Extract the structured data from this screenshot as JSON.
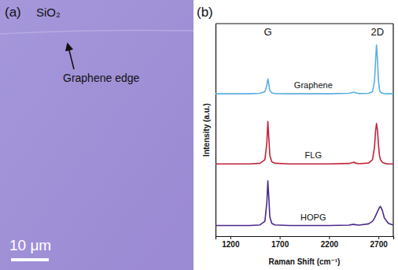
{
  "panel_a": {
    "label": "(a)",
    "substrate": "SiO₂",
    "annotation": "Graphene edge",
    "scale_bar": "10 μm"
  },
  "chart_data": {
    "type": "line",
    "panel_label": "(b)",
    "x_label": "Raman Shift (cm⁻¹)",
    "y_label": "Intensity (a.u.)",
    "annotations": [
      {
        "text": "G",
        "x": 1580
      },
      {
        "text": "2D",
        "x": 2690
      }
    ],
    "x": [
      1050,
      1200,
      1400,
      1500,
      1550,
      1570,
      1580,
      1590,
      1600,
      1620,
      1650,
      1800,
      2000,
      2200,
      2400,
      2440,
      2450,
      2460,
      2500,
      2600,
      2640,
      2660,
      2670,
      2680,
      2690,
      2700,
      2710,
      2720,
      2740,
      2760,
      2800,
      2850
    ],
    "series": [
      {
        "name": "Graphene",
        "color": "#5aaee0",
        "values": [
          6.7,
          6.7,
          6.7,
          6.72,
          6.8,
          7.1,
          7.4,
          7.15,
          6.85,
          6.74,
          6.71,
          6.7,
          6.7,
          6.7,
          6.72,
          6.76,
          6.78,
          6.75,
          6.71,
          6.72,
          6.8,
          7.3,
          8.2,
          9.0,
          8.3,
          7.3,
          6.9,
          6.78,
          6.73,
          6.71,
          6.7,
          6.7
        ]
      },
      {
        "name": "FLG",
        "color": "#c0243a",
        "values": [
          3.4,
          3.4,
          3.4,
          3.43,
          3.6,
          4.4,
          5.4,
          4.6,
          3.8,
          3.5,
          3.43,
          3.4,
          3.4,
          3.4,
          3.42,
          3.46,
          3.48,
          3.45,
          3.41,
          3.44,
          3.6,
          4.2,
          4.9,
          5.3,
          5.0,
          4.3,
          3.8,
          3.6,
          3.47,
          3.43,
          3.4,
          3.4
        ]
      },
      {
        "name": "HOPG",
        "color": "#4b2a8a",
        "values": [
          0.5,
          0.5,
          0.5,
          0.53,
          0.7,
          1.6,
          2.6,
          1.8,
          0.9,
          0.6,
          0.53,
          0.5,
          0.5,
          0.5,
          0.52,
          0.55,
          0.56,
          0.54,
          0.52,
          0.58,
          0.7,
          0.85,
          0.95,
          1.05,
          1.15,
          1.25,
          1.35,
          1.4,
          1.2,
          0.85,
          0.6,
          0.52
        ]
      }
    ],
    "xlim": [
      1050,
      2850
    ],
    "xticks": [
      1200,
      1700,
      2200,
      2700
    ],
    "ylim": [
      0,
      10
    ],
    "tick_labels": "x"
  }
}
